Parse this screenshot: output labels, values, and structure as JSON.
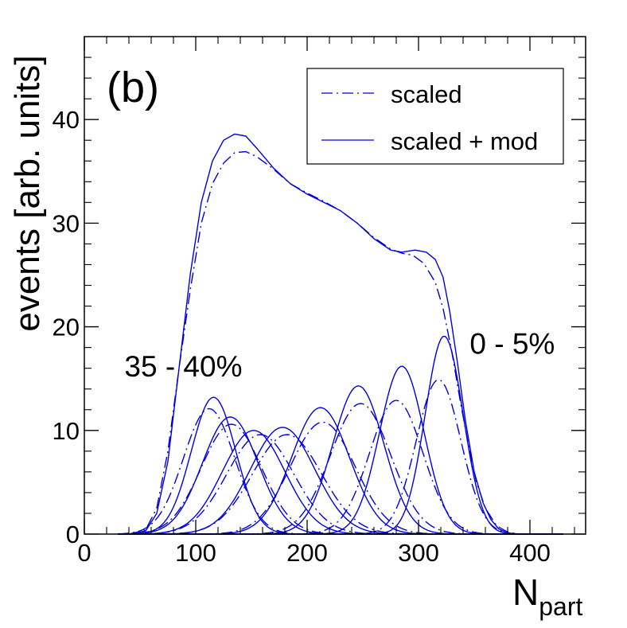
{
  "chart_data": {
    "type": "line",
    "panel_label": "(b)",
    "xlabel_main": "N",
    "xlabel_sub": "part",
    "ylabel": "events  [arb. units]",
    "xlim": [
      0,
      450
    ],
    "ylim": [
      0,
      48
    ],
    "x_ticks": [
      0,
      100,
      200,
      300,
      400
    ],
    "x_tick_labels": [
      "0",
      "100",
      "200",
      "300",
      "400"
    ],
    "y_ticks": [
      0,
      10,
      20,
      30,
      40
    ],
    "y_tick_labels": [
      "0",
      "10",
      "20",
      "30",
      "40"
    ],
    "line_color": "#0000dd",
    "annotations": [
      {
        "text": "35 - 40%",
        "x": 36,
        "y": 15.2
      },
      {
        "text": "0 - 5%",
        "x": 346,
        "y": 17.4
      }
    ],
    "legend": [
      {
        "label": "scaled",
        "style": "dash-dot"
      },
      {
        "label": "scaled + mod",
        "style": "solid"
      }
    ],
    "series": [
      {
        "name": "scaled (total)",
        "style": "dash-dot",
        "points": [
          [
            40,
            0
          ],
          [
            55,
            0.4
          ],
          [
            65,
            2.5
          ],
          [
            75,
            8
          ],
          [
            85,
            16
          ],
          [
            95,
            23.5
          ],
          [
            105,
            30
          ],
          [
            115,
            33.8
          ],
          [
            125,
            35.8
          ],
          [
            135,
            36.8
          ],
          [
            145,
            36.9
          ],
          [
            155,
            36.4
          ],
          [
            170,
            35.2
          ],
          [
            185,
            33.8
          ],
          [
            200,
            32.9
          ],
          [
            215,
            32.1
          ],
          [
            230,
            31.2
          ],
          [
            245,
            30
          ],
          [
            260,
            28.6
          ],
          [
            275,
            27.5
          ],
          [
            285,
            27.1
          ],
          [
            295,
            26.9
          ],
          [
            305,
            26.1
          ],
          [
            315,
            24.3
          ],
          [
            322,
            21.8
          ],
          [
            330,
            17.5
          ],
          [
            338,
            12.5
          ],
          [
            345,
            8.5
          ],
          [
            352,
            5
          ],
          [
            360,
            2.5
          ],
          [
            370,
            0.8
          ],
          [
            380,
            0.2
          ],
          [
            390,
            0
          ]
        ]
      },
      {
        "name": "scaled + mod (total)",
        "style": "solid",
        "points": [
          [
            40,
            0
          ],
          [
            55,
            0.3
          ],
          [
            65,
            2
          ],
          [
            75,
            7
          ],
          [
            85,
            16
          ],
          [
            95,
            25
          ],
          [
            105,
            32
          ],
          [
            115,
            36
          ],
          [
            125,
            38
          ],
          [
            135,
            38.6
          ],
          [
            145,
            38.4
          ],
          [
            155,
            37.2
          ],
          [
            170,
            35.3
          ],
          [
            185,
            33.8
          ],
          [
            200,
            32.8
          ],
          [
            215,
            32
          ],
          [
            230,
            31.2
          ],
          [
            245,
            30
          ],
          [
            260,
            28.5
          ],
          [
            275,
            27.4
          ],
          [
            285,
            27.2
          ],
          [
            297,
            27.4
          ],
          [
            307,
            27.2
          ],
          [
            315,
            26.5
          ],
          [
            322,
            24.8
          ],
          [
            328,
            21.5
          ],
          [
            335,
            16.5
          ],
          [
            342,
            11
          ],
          [
            350,
            6
          ],
          [
            358,
            3
          ],
          [
            365,
            1.4
          ],
          [
            372,
            0.5
          ],
          [
            380,
            0.1
          ],
          [
            390,
            0
          ]
        ]
      },
      {
        "name": "scaled 1",
        "style": "dash-dot",
        "shape": "gauss",
        "mu": 112,
        "sigma": 23,
        "amp": 12.1
      },
      {
        "name": "scaled 2",
        "style": "dash-dot",
        "shape": "gauss",
        "mu": 132,
        "sigma": 27,
        "amp": 10.6
      },
      {
        "name": "scaled 3",
        "style": "dash-dot",
        "shape": "gauss",
        "mu": 158,
        "sigma": 30,
        "amp": 9.6
      },
      {
        "name": "scaled 4",
        "style": "dash-dot",
        "shape": "gauss",
        "mu": 182,
        "sigma": 31,
        "amp": 9.6
      },
      {
        "name": "scaled 5",
        "style": "dash-dot",
        "shape": "gauss",
        "mu": 214,
        "sigma": 29,
        "amp": 10.8
      },
      {
        "name": "scaled 6",
        "style": "dash-dot",
        "shape": "gauss",
        "mu": 248,
        "sigma": 27,
        "amp": 12.6
      },
      {
        "name": "scaled 7",
        "style": "dash-dot",
        "shape": "gauss",
        "mu": 280,
        "sigma": 24,
        "amp": 12.9
      },
      {
        "name": "scaled 8",
        "style": "dash-dot",
        "shape": "gauss",
        "mu": 318,
        "sigma": 20,
        "amp": 14.9
      },
      {
        "name": "scaled + mod 1",
        "style": "solid",
        "shape": "gauss",
        "mu": 116,
        "sigma": 20,
        "amp": 13.2
      },
      {
        "name": "scaled + mod 2",
        "style": "solid",
        "shape": "gauss",
        "mu": 131,
        "sigma": 25,
        "amp": 11.3
      },
      {
        "name": "scaled + mod 3",
        "style": "solid",
        "shape": "gauss",
        "mu": 152,
        "sigma": 28,
        "amp": 10
      },
      {
        "name": "scaled + mod 4",
        "style": "solid",
        "shape": "gauss",
        "mu": 178,
        "sigma": 29,
        "amp": 10.3
      },
      {
        "name": "scaled + mod 5",
        "style": "solid",
        "shape": "gauss",
        "mu": 212,
        "sigma": 26,
        "amp": 12.2
      },
      {
        "name": "scaled + mod 6",
        "style": "solid",
        "shape": "gauss",
        "mu": 246,
        "sigma": 23,
        "amp": 14.3
      },
      {
        "name": "scaled + mod 7",
        "style": "solid",
        "shape": "gauss",
        "mu": 285,
        "sigma": 20,
        "amp": 16.2
      },
      {
        "name": "scaled + mod 8",
        "style": "solid",
        "shape": "gauss",
        "mu": 323,
        "sigma": 17,
        "amp": 19.1
      }
    ]
  }
}
